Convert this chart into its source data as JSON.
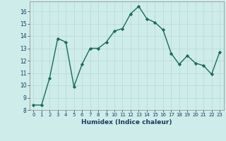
{
  "x": [
    0,
    1,
    2,
    3,
    4,
    5,
    6,
    7,
    8,
    9,
    10,
    11,
    12,
    13,
    14,
    15,
    16,
    17,
    18,
    19,
    20,
    21,
    22,
    23
  ],
  "y": [
    8.4,
    8.4,
    10.6,
    13.8,
    13.5,
    9.9,
    11.7,
    13.0,
    13.0,
    13.5,
    14.4,
    14.6,
    15.8,
    16.4,
    15.4,
    15.1,
    14.5,
    12.6,
    11.7,
    12.4,
    11.8,
    11.6,
    10.9,
    12.7
  ],
  "line_color": "#1a6b5a",
  "marker": "D",
  "marker_size": 2.2,
  "linewidth": 1.0,
  "xlabel": "Humidex (Indice chaleur)",
  "xlim": [
    -0.5,
    23.5
  ],
  "ylim": [
    8,
    16.8
  ],
  "yticks": [
    8,
    9,
    10,
    11,
    12,
    13,
    14,
    15,
    16
  ],
  "xtick_labels": [
    "0",
    "1",
    "2",
    "3",
    "4",
    "5",
    "6",
    "7",
    "8",
    "9",
    "10",
    "11",
    "12",
    "13",
    "14",
    "15",
    "16",
    "17",
    "18",
    "19",
    "20",
    "21",
    "22",
    "23"
  ],
  "bg_color": "#ceecea",
  "grid_color": "#b8d8d4",
  "xlabel_color": "#1a3a5c",
  "tick_color": "#1a3a5c",
  "spine_color": "#888888"
}
